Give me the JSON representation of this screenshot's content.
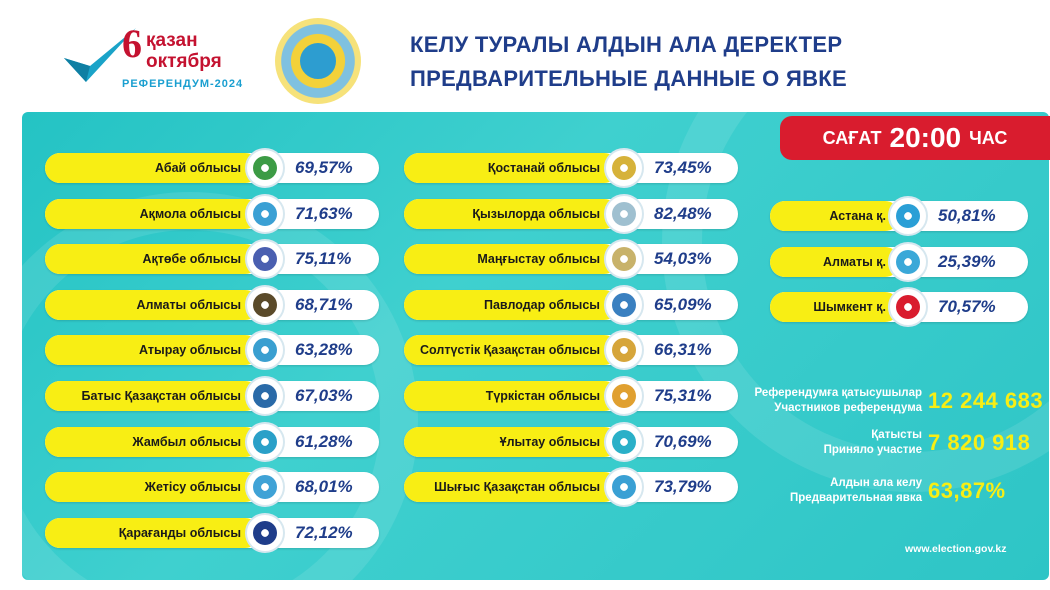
{
  "header": {
    "logo_day": "6",
    "logo_line1": "қазан",
    "logo_line2": "октября",
    "logo_line3": "РЕФЕРЕНДУМ-2024",
    "title_kz": "КЕЛУ ТУРАЛЫ АЛДЫН АЛА ДЕРЕКТЕР",
    "title_ru": "ПРЕДВАРИТЕЛЬНЫЕ ДАННЫЕ О ЯВКЕ"
  },
  "time_badge": {
    "pre": "САҒАТ",
    "time": "20:00",
    "post": "ЧАС"
  },
  "regions_col1": [
    {
      "name": "Абай облысы",
      "value": "69,57%",
      "icon": "abai-emblem-icon",
      "color": "#3c9b45"
    },
    {
      "name": "Ақмола облысы",
      "value": "71,63%",
      "icon": "akmola-emblem-icon",
      "color": "#3aa0d4"
    },
    {
      "name": "Ақтөбе облысы",
      "value": "75,11%",
      "icon": "aktobe-emblem-icon",
      "color": "#4a5fb0"
    },
    {
      "name": "Алматы облысы",
      "value": "68,71%",
      "icon": "almaty-region-emblem-icon",
      "color": "#5a4a2a"
    },
    {
      "name": "Атырау облысы",
      "value": "63,28%",
      "icon": "atyrau-emblem-icon",
      "color": "#3a9fd0"
    },
    {
      "name": "Батыс Қазақстан облысы",
      "value": "67,03%",
      "icon": "west-kazakhstan-emblem-icon",
      "color": "#2a6aa8"
    },
    {
      "name": "Жамбыл облысы",
      "value": "61,28%",
      "icon": "zhambyl-emblem-icon",
      "color": "#2aa0c8"
    },
    {
      "name": "Жетісу облысы",
      "value": "68,01%",
      "icon": "zhetisu-emblem-icon",
      "color": "#3fa2d6"
    },
    {
      "name": "Қарағанды облысы",
      "value": "72,12%",
      "icon": "karaganda-emblem-icon",
      "color": "#1f3d8a"
    }
  ],
  "regions_col2": [
    {
      "name": "Қостанай облысы",
      "value": "73,45%",
      "icon": "kostanay-emblem-icon",
      "color": "#d6b23a"
    },
    {
      "name": "Қызылорда облысы",
      "value": "82,48%",
      "icon": "kyzylorda-emblem-icon",
      "color": "#9fc0d0"
    },
    {
      "name": "Маңғыстау облысы",
      "value": "54,03%",
      "icon": "mangystau-emblem-icon",
      "color": "#c8b26a"
    },
    {
      "name": "Павлодар облысы",
      "value": "65,09%",
      "icon": "pavlodar-emblem-icon",
      "color": "#3a80c0"
    },
    {
      "name": "Солтүстік Қазақстан облысы",
      "value": "66,31%",
      "icon": "north-kazakhstan-emblem-icon",
      "color": "#d6a53a"
    },
    {
      "name": "Түркістан облысы",
      "value": "75,31%",
      "icon": "turkistan-emblem-icon",
      "color": "#e0a030"
    },
    {
      "name": "Ұлытау облысы",
      "value": "70,69%",
      "icon": "ulytau-emblem-icon",
      "color": "#2ab0c8"
    },
    {
      "name": "Шығыс Қазақстан облысы",
      "value": "73,79%",
      "icon": "east-kazakhstan-emblem-icon",
      "color": "#3aa0d4"
    }
  ],
  "cities": [
    {
      "name": "Астана қ.",
      "value": "50,81%",
      "icon": "astana-emblem-icon",
      "color": "#2a9fd6"
    },
    {
      "name": "Алматы қ.",
      "value": "25,39%",
      "icon": "almaty-city-emblem-icon",
      "color": "#3aa8d8"
    },
    {
      "name": "Шымкент қ.",
      "value": "70,57%",
      "icon": "shymkent-emblem-icon",
      "color": "#d91c2e"
    }
  ],
  "stats": {
    "participants_kz": "Референдумға қатысушылар",
    "participants_ru": "Участников референдума",
    "participants_value": "12 244 683",
    "voted_kz": "Қатысты",
    "voted_ru": "Приняло участие",
    "voted_value": "7 820 918",
    "turnout_kz": "Алдын ала келу",
    "turnout_ru": "Предварительная явка",
    "turnout_value": "63,87%"
  },
  "footer": {
    "url": "www.election.gov.kz"
  }
}
